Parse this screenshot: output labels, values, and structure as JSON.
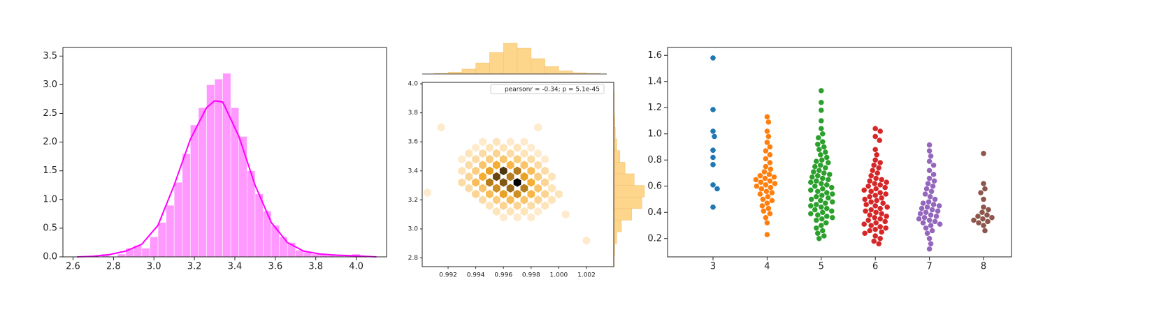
{
  "chart_data": [
    {
      "type": "histogram",
      "color": "#ff6cff",
      "bins": [
        2.74,
        2.78,
        2.82,
        2.86,
        2.9,
        2.94,
        2.98,
        3.02,
        3.06,
        3.1,
        3.14,
        3.18,
        3.22,
        3.26,
        3.3,
        3.34,
        3.38,
        3.42,
        3.46,
        3.5,
        3.54,
        3.58,
        3.62,
        3.66,
        3.7,
        3.74,
        3.78,
        3.82,
        3.86,
        3.9,
        3.94,
        3.98,
        4.02
      ],
      "counts": [
        0.05,
        0,
        0.05,
        0.15,
        0.2,
        0.15,
        0.35,
        0.6,
        0.9,
        1.3,
        1.8,
        2.3,
        2.6,
        3.0,
        3.1,
        3.2,
        2.6,
        2.1,
        1.5,
        1.1,
        0.8,
        0.55,
        0.35,
        0.25,
        0.12,
        0.08,
        0.05,
        0.05,
        0.03,
        0.03,
        0.02,
        0.05
      ],
      "kde": {
        "color": "#ff00ff",
        "x": [
          2.62,
          2.7,
          2.78,
          2.86,
          2.94,
          3.02,
          3.1,
          3.18,
          3.26,
          3.3,
          3.34,
          3.42,
          3.5,
          3.58,
          3.66,
          3.74,
          3.82,
          3.9,
          3.98,
          4.1
        ],
        "values": [
          0,
          0.01,
          0.04,
          0.1,
          0.22,
          0.55,
          1.25,
          2.05,
          2.6,
          2.72,
          2.7,
          2.1,
          1.25,
          0.6,
          0.25,
          0.1,
          0.05,
          0.03,
          0.02,
          0
        ]
      },
      "xlim": [
        2.55,
        4.15
      ],
      "ylim": [
        0,
        3.65
      ],
      "xticks": [
        2.6,
        2.8,
        {
          "value": 3.0,
          "label": "3.0"
        },
        3.2,
        3.4,
        3.6,
        3.8,
        {
          "value": 4.0,
          "label": "4.0"
        }
      ],
      "yticks": [
        {
          "value": 0,
          "label": "0.0"
        },
        0.5,
        {
          "value": 1,
          "label": "1.0"
        },
        1.5,
        {
          "value": 2,
          "label": "2.0"
        },
        2.5,
        {
          "value": 3,
          "label": "3.0"
        },
        3.5
      ]
    },
    {
      "type": "hexbin",
      "annotation": "pearsonr = -0.34; p = 5.1e-45",
      "color": "#fdd58b",
      "cells": {
        "x": [
          0.9945,
          0.9955,
          0.9965,
          0.9975,
          0.994,
          0.995,
          0.996,
          0.997,
          0.998,
          0.9935,
          0.9945,
          0.9955,
          0.9965,
          0.9975,
          0.9985,
          0.993,
          0.994,
          0.995,
          0.996,
          0.997,
          0.998,
          0.999,
          0.9935,
          0.9945,
          0.9955,
          0.9965,
          0.9975,
          0.9985,
          0.993,
          0.994,
          0.995,
          0.996,
          0.997,
          0.998,
          0.999,
          0.9935,
          0.9945,
          0.9955,
          0.9965,
          0.9975,
          0.9985,
          0.9995,
          0.993,
          0.994,
          0.995,
          0.996,
          0.997,
          0.998,
          0.999,
          0.9935,
          0.9945,
          0.9955,
          0.9965,
          0.9975,
          0.9985,
          0.9995,
          0.994,
          0.995,
          0.996,
          0.997,
          0.998,
          0.999,
          1.0,
          0.9945,
          0.9955,
          0.9965,
          0.9975,
          0.9985,
          0.9995,
          0.995,
          0.996,
          0.997,
          0.998,
          0.999,
          0.9955,
          0.9965,
          0.9975,
          0.9985,
          0.996,
          0.997,
          0.998,
          0.9905,
          1.002,
          0.9915,
          1.0005,
          0.9985
        ],
        "y": [
          3.6,
          3.6,
          3.6,
          3.6,
          3.56,
          3.56,
          3.56,
          3.56,
          3.56,
          3.52,
          3.52,
          3.52,
          3.52,
          3.52,
          3.52,
          3.48,
          3.48,
          3.48,
          3.48,
          3.48,
          3.48,
          3.48,
          3.44,
          3.44,
          3.44,
          3.44,
          3.44,
          3.44,
          3.4,
          3.4,
          3.4,
          3.4,
          3.4,
          3.4,
          3.4,
          3.36,
          3.36,
          3.36,
          3.36,
          3.36,
          3.36,
          3.36,
          3.32,
          3.32,
          3.32,
          3.32,
          3.32,
          3.32,
          3.32,
          3.28,
          3.28,
          3.28,
          3.28,
          3.28,
          3.28,
          3.28,
          3.24,
          3.24,
          3.24,
          3.24,
          3.24,
          3.24,
          3.24,
          3.2,
          3.2,
          3.2,
          3.2,
          3.2,
          3.2,
          3.16,
          3.16,
          3.16,
          3.16,
          3.16,
          3.12,
          3.12,
          3.12,
          3.12,
          3.08,
          3.08,
          3.08,
          3.25,
          2.92,
          3.7,
          3.1,
          3.7
        ],
        "counts": [
          1,
          2,
          1,
          1,
          1,
          2,
          2,
          2,
          1,
          2,
          3,
          4,
          3,
          2,
          1,
          1,
          3,
          5,
          6,
          5,
          3,
          1,
          3,
          6,
          9,
          8,
          6,
          3,
          2,
          5,
          10,
          16,
          12,
          7,
          3,
          4,
          9,
          15,
          12,
          10,
          5,
          2,
          3,
          7,
          12,
          14,
          19,
          9,
          4,
          3,
          6,
          11,
          13,
          12,
          6,
          2,
          4,
          7,
          10,
          11,
          8,
          4,
          2,
          3,
          5,
          7,
          6,
          4,
          2,
          2,
          4,
          4,
          3,
          2,
          2,
          2,
          2,
          1,
          1,
          1,
          1,
          1,
          1,
          1,
          1,
          1
        ]
      },
      "top_hist": {
        "bins": [
          0.99,
          0.991,
          0.992,
          0.993,
          0.994,
          0.995,
          0.996,
          0.997,
          0.998,
          0.999,
          1.0,
          1.001,
          1.002,
          1.003,
          1.004
        ],
        "counts": [
          0,
          1,
          3,
          8,
          18,
          35,
          50,
          42,
          25,
          12,
          5,
          2,
          1,
          0
        ]
      },
      "right_hist": {
        "bins": [
          2.74,
          2.82,
          2.9,
          2.98,
          3.06,
          3.14,
          3.22,
          3.3,
          3.38,
          3.46,
          3.54,
          3.62,
          3.7,
          3.78,
          3.86,
          3.94,
          4.02
        ],
        "counts": [
          1,
          2,
          6,
          15,
          35,
          55,
          60,
          40,
          22,
          12,
          6,
          3,
          2,
          1,
          1,
          0
        ]
      },
      "xlim": [
        0.99013,
        1.00397
      ],
      "ylim": [
        2.74,
        4.01
      ],
      "xticks": [
        0.992,
        0.994,
        0.996,
        0.998,
        {
          "value": 1.0,
          "label": "1.000"
        },
        1.002
      ],
      "yticks": [
        2.8,
        {
          "value": 3.0,
          "label": "3.0"
        },
        3.2,
        3.4,
        3.6,
        3.8,
        {
          "value": 4.0,
          "label": "4.0"
        }
      ]
    },
    {
      "type": "swarm",
      "categories": [
        "3",
        "4",
        "5",
        "6",
        "7",
        "8"
      ],
      "colors": [
        "#1f77b4",
        "#ff7f0e",
        "#2ca02c",
        "#d62728",
        "#9467bd",
        "#8c564b"
      ],
      "values": [
        [
          1.58,
          1.185,
          1.02,
          0.98,
          0.875,
          0.82,
          0.765,
          0.61,
          0.58,
          0.44
        ],
        [
          1.13,
          1.09,
          1.02,
          0.98,
          0.935,
          0.9,
          0.87,
          0.84,
          0.81,
          0.78,
          0.75,
          0.73,
          0.71,
          0.69,
          0.68,
          0.67,
          0.66,
          0.65,
          0.64,
          0.63,
          0.62,
          0.61,
          0.6,
          0.59,
          0.58,
          0.56,
          0.55,
          0.54,
          0.52,
          0.5,
          0.49,
          0.47,
          0.45,
          0.43,
          0.41,
          0.39,
          0.36,
          0.32,
          0.23
        ],
        [
          1.33,
          1.24,
          1.18,
          1.1,
          1.04,
          1.0,
          0.97,
          0.94,
          0.92,
          0.9,
          0.88,
          0.86,
          0.84,
          0.82,
          0.8,
          0.79,
          0.78,
          0.76,
          0.75,
          0.74,
          0.72,
          0.71,
          0.7,
          0.69,
          0.68,
          0.67,
          0.66,
          0.65,
          0.64,
          0.63,
          0.62,
          0.61,
          0.6,
          0.59,
          0.58,
          0.57,
          0.56,
          0.55,
          0.54,
          0.53,
          0.52,
          0.51,
          0.5,
          0.49,
          0.48,
          0.47,
          0.46,
          0.45,
          0.44,
          0.43,
          0.42,
          0.41,
          0.4,
          0.39,
          0.38,
          0.37,
          0.36,
          0.35,
          0.34,
          0.32,
          0.3,
          0.28,
          0.26,
          0.24,
          0.22,
          0.2
        ],
        [
          1.04,
          1.02,
          0.98,
          0.95,
          0.88,
          0.84,
          0.8,
          0.78,
          0.76,
          0.74,
          0.72,
          0.7,
          0.68,
          0.66,
          0.65,
          0.64,
          0.63,
          0.62,
          0.61,
          0.6,
          0.59,
          0.58,
          0.57,
          0.56,
          0.55,
          0.54,
          0.53,
          0.52,
          0.51,
          0.5,
          0.49,
          0.48,
          0.47,
          0.46,
          0.45,
          0.44,
          0.43,
          0.42,
          0.41,
          0.4,
          0.39,
          0.38,
          0.37,
          0.36,
          0.35,
          0.34,
          0.33,
          0.32,
          0.31,
          0.3,
          0.29,
          0.28,
          0.27,
          0.26,
          0.25,
          0.24,
          0.22,
          0.2,
          0.18,
          0.16
        ],
        [
          0.915,
          0.87,
          0.83,
          0.79,
          0.76,
          0.72,
          0.69,
          0.66,
          0.64,
          0.62,
          0.6,
          0.58,
          0.56,
          0.54,
          0.52,
          0.5,
          0.48,
          0.47,
          0.46,
          0.45,
          0.44,
          0.43,
          0.42,
          0.41,
          0.4,
          0.39,
          0.38,
          0.37,
          0.36,
          0.35,
          0.34,
          0.33,
          0.32,
          0.31,
          0.3,
          0.28,
          0.26,
          0.24,
          0.2,
          0.16,
          0.12
        ],
        [
          0.85,
          0.62,
          0.58,
          0.55,
          0.5,
          0.44,
          0.42,
          0.4,
          0.38,
          0.37,
          0.36,
          0.35,
          0.34,
          0.33,
          0.32,
          0.3,
          0.26
        ]
      ],
      "ylim": [
        0.06,
        1.66
      ],
      "yticks": [
        0.2,
        0.4,
        0.6,
        0.8,
        {
          "value": 1.0,
          "label": "1.0"
        },
        1.2,
        1.4,
        1.6
      ]
    }
  ]
}
